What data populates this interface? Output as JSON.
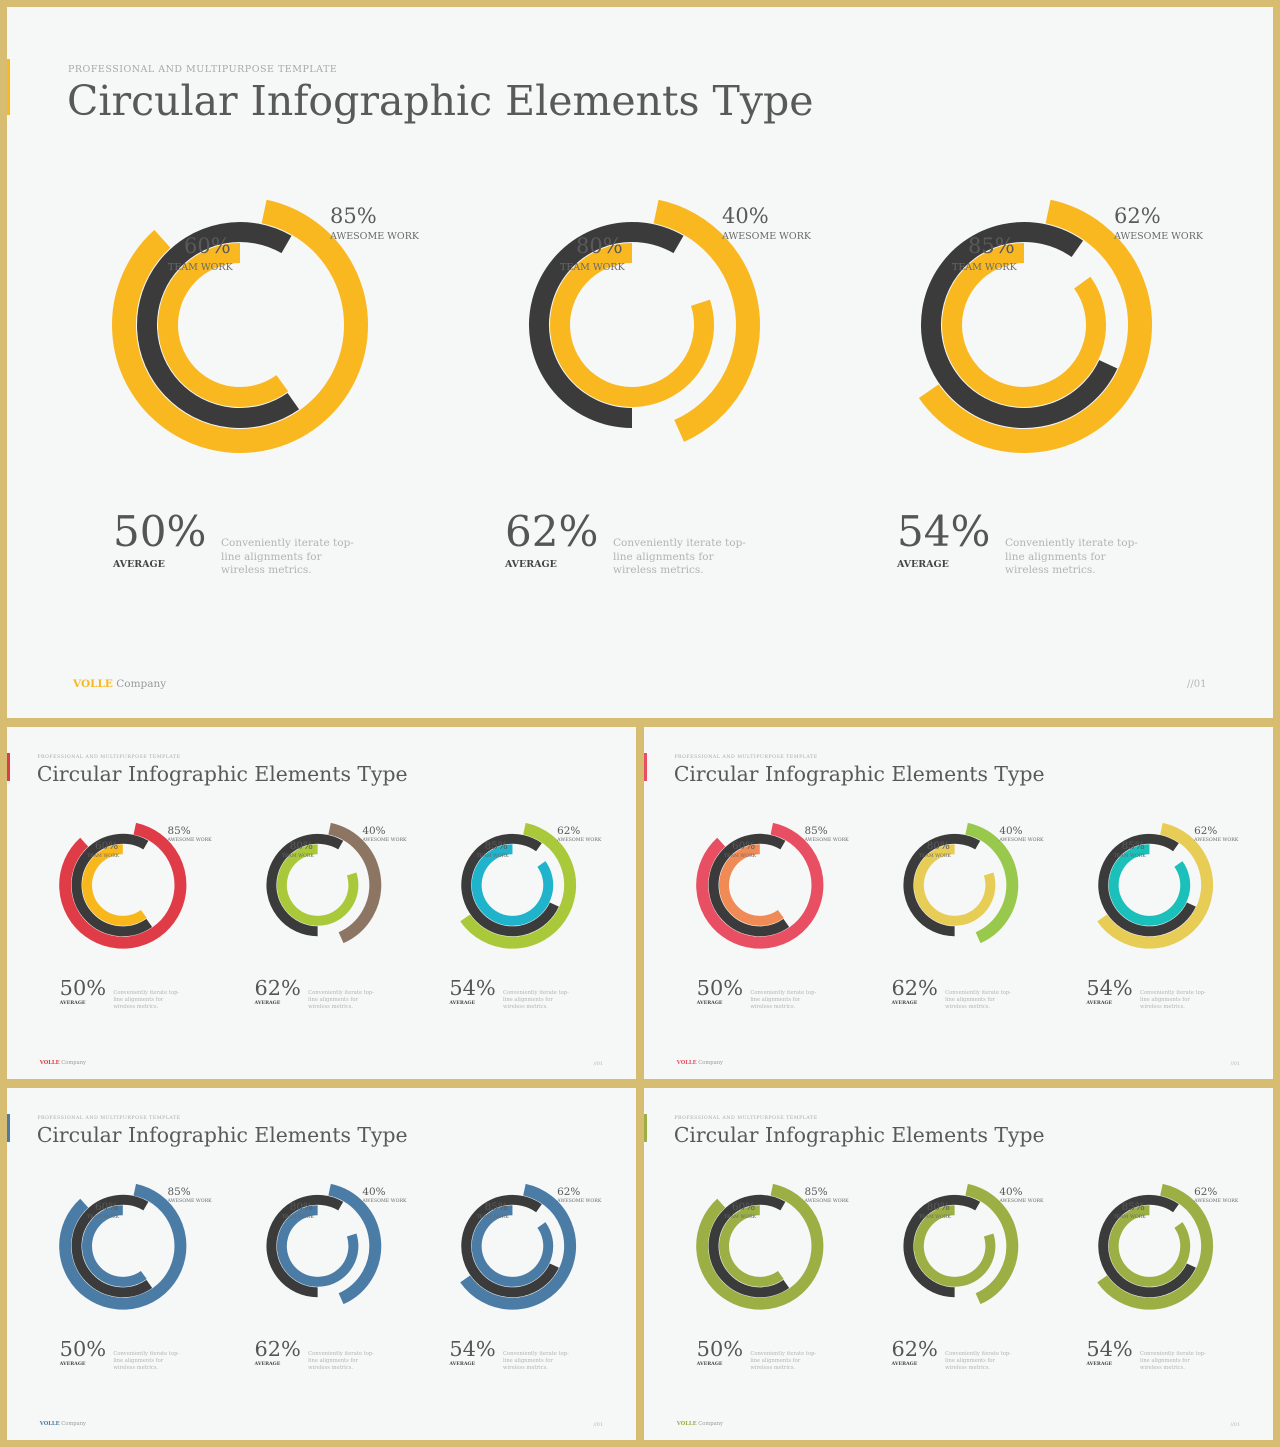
{
  "slide": {
    "kicker": "PROFESSIONAL AND MULTIPURPOSE  TEMPLATE",
    "title": "Circular Infographic Elements Type",
    "brand_name": "VOLLE",
    "brand_suffix": "Company",
    "page_number": "//01"
  },
  "chart_data": [
    {
      "type": "radial-bar",
      "title": "Circular Infographic Elements Type",
      "inner": {
        "label": "TEAM WORK",
        "value": 60
      },
      "outer": {
        "label": "AWESOME WORK",
        "value": 85
      },
      "average": {
        "label": "AVERAGE",
        "value": 50,
        "display": "50%"
      },
      "description": "Conveniently iterate top-line alignments for wireless metrics."
    },
    {
      "type": "radial-bar",
      "title": "Circular Infographic Elements Type",
      "inner": {
        "label": "TEAM WORK",
        "value": 80
      },
      "outer": {
        "label": "AWESOME WORK",
        "value": 40
      },
      "average": {
        "label": "AVERAGE",
        "value": 62,
        "display": "62%"
      },
      "description": "Conveniently iterate top-line alignments for wireless metrics."
    },
    {
      "type": "radial-bar",
      "title": "Circular Infographic Elements Type",
      "inner": {
        "label": "TEAM WORK",
        "value": 85
      },
      "outer": {
        "label": "AWESOME WORK",
        "value": 62
      },
      "average": {
        "label": "AVERAGE",
        "value": 54,
        "display": "54%"
      },
      "description": "Conveniently iterate top-line alignments for wireless metrics."
    }
  ],
  "color_variants": [
    {
      "accent": "#f9b820",
      "dark": "#3b3b3b",
      "brand": "#f9b820",
      "charts": [
        {
          "inner": "#f9b820",
          "outer": "#f9b820"
        },
        {
          "inner": "#f9b820",
          "outer": "#f9b820"
        },
        {
          "inner": "#f9b820",
          "outer": "#f9b820"
        }
      ]
    },
    {
      "accent": "#e03c48",
      "dark": "#3b3b3b",
      "brand": "#e03c48",
      "charts": [
        {
          "inner": "#f8b81c",
          "outer": "#e03c48"
        },
        {
          "inner": "#a9c93a",
          "outer": "#8c7563"
        },
        {
          "inner": "#1fb3cc",
          "outer": "#a9c93a"
        }
      ]
    },
    {
      "accent": "#e84f62",
      "dark": "#3b3b3b",
      "brand": "#e84f62",
      "charts": [
        {
          "inner": "#f08b55",
          "outer": "#e84f62"
        },
        {
          "inner": "#e7cd55",
          "outer": "#98c94d"
        },
        {
          "inner": "#1cc0bb",
          "outer": "#e7cd55"
        }
      ]
    },
    {
      "accent": "#4a7ca6",
      "dark": "#3b3b3b",
      "brand": "#4a7ca6",
      "charts": [
        {
          "inner": "#4a7ca6",
          "outer": "#4a7ca6"
        },
        {
          "inner": "#4a7ca6",
          "outer": "#4a7ca6"
        },
        {
          "inner": "#4a7ca6",
          "outer": "#4a7ca6"
        }
      ]
    },
    {
      "accent": "#9caf45",
      "dark": "#3b3b3b",
      "brand": "#9caf45",
      "charts": [
        {
          "inner": "#9caf45",
          "outer": "#9caf45"
        },
        {
          "inner": "#9caf45",
          "outer": "#9caf45"
        },
        {
          "inner": "#9caf45",
          "outer": "#9caf45"
        }
      ]
    }
  ]
}
